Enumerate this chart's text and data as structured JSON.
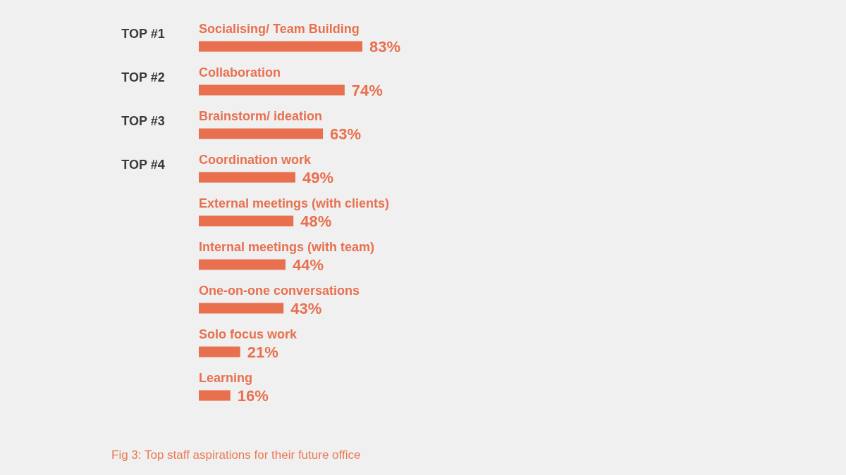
{
  "chart_data": {
    "type": "bar",
    "orientation": "horizontal",
    "tick_labels": "y",
    "color": "#e8704f",
    "categories": [
      "Socialising/ Team Building",
      "Collaboration",
      "Brainstorm/ ideation",
      "Coordination work",
      "External meetings (with clients)",
      "Internal meetings (with team)",
      "One-on-one conversations",
      "Solo focus work",
      "Learning"
    ],
    "values": [
      83,
      74,
      63,
      49,
      48,
      44,
      43,
      21,
      16
    ],
    "value_labels": [
      "83%",
      "74%",
      "63%",
      "49%",
      "48%",
      "44%",
      "43%",
      "21%",
      "16%"
    ],
    "annotations": [
      "TOP #1",
      "TOP #2",
      "TOP #3",
      "TOP #4",
      "Fig 3: Top staff aspirations for their future office"
    ]
  }
}
